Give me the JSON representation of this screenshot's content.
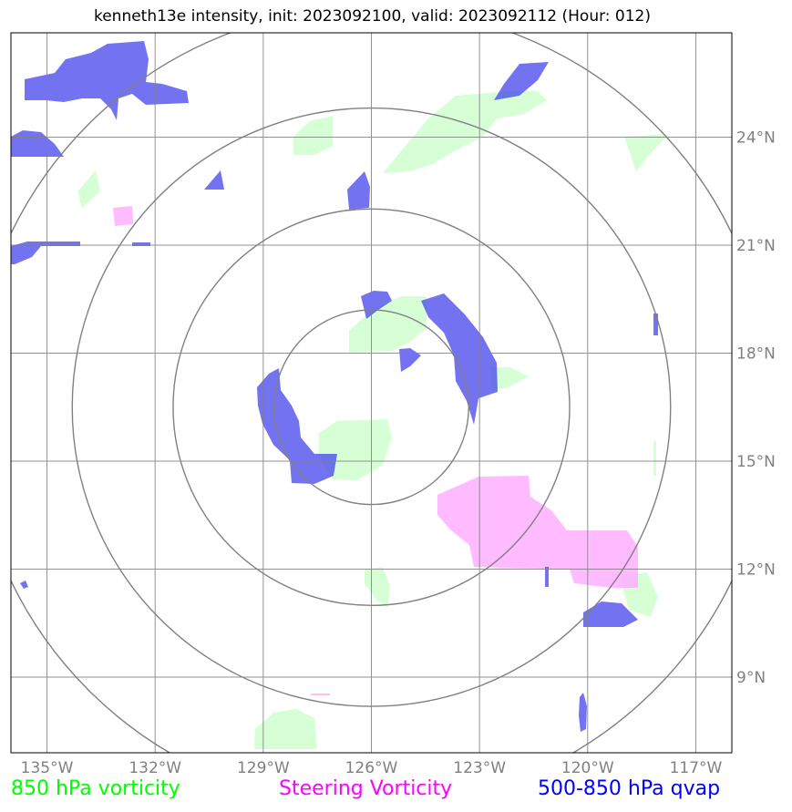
{
  "title": "kenneth13e intensity, init: 2023092100, valid: 2023092112 (Hour: 012)",
  "axes": {
    "lon_ticks": [
      "135°W",
      "132°W",
      "129°W",
      "126°W",
      "123°W",
      "120°W",
      "117°W"
    ],
    "lat_ticks": [
      "24°N",
      "21°N",
      "18°N",
      "15°N",
      "12°N",
      "9°N"
    ]
  },
  "map_extent": {
    "lon_min": -136,
    "lon_max": -116,
    "lat_min": 6.9,
    "lat_max": 26.9
  },
  "storm_center": {
    "lon": -126.0,
    "lat": 16.5
  },
  "range_rings_deg": [
    2.7,
    5.5,
    8.3,
    11.1
  ],
  "colors": {
    "vort850": "#00ff00",
    "steering": "#ff00ff",
    "qvap": "#0000ff",
    "grid": "#808080",
    "ring": "#808080"
  },
  "legend": {
    "left": "850 hPa vorticity",
    "middle": "Steering Vorticity",
    "right": "500-850 hPa qvap"
  }
}
